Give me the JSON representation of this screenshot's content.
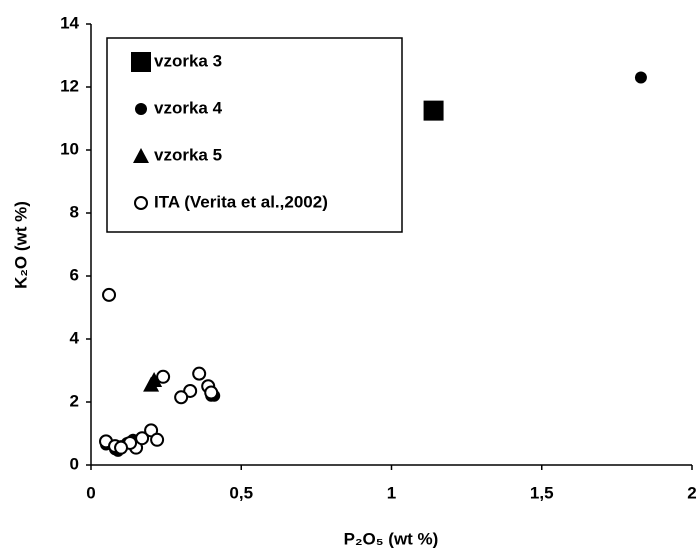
{
  "chart_data": {
    "type": "scatter",
    "x_label": "P₂O₅ (wt %)",
    "y_label": "K₂O (wt %)",
    "xlim": [
      0,
      2
    ],
    "xticks": [
      0,
      {
        "value": 0.5,
        "label": "0,5"
      },
      1,
      {
        "value": 1.5,
        "label": "1,5"
      },
      2
    ],
    "ylim": [
      0,
      14
    ],
    "yticks": [
      0,
      2,
      4,
      6,
      8,
      10,
      12,
      14
    ],
    "series": [
      {
        "name": "vzorka 3",
        "marker": "square",
        "color": "#000000",
        "x": [
          1.14
        ],
        "y": [
          11.25
        ]
      },
      {
        "name": "vzorka 4",
        "marker": "circle",
        "color": "#000000",
        "x": [
          1.83,
          0.4,
          0.41,
          0.08,
          0.1,
          0.12,
          0.14,
          0.05,
          0.09
        ],
        "y": [
          12.3,
          2.2,
          2.2,
          0.5,
          0.6,
          0.7,
          0.8,
          0.65,
          0.45
        ]
      },
      {
        "name": "vzorka 5",
        "marker": "triangle",
        "color": "#000000",
        "x": [
          0.2,
          0.21
        ],
        "y": [
          2.55,
          2.7
        ]
      },
      {
        "name": "ITA (Verita et al.,2002)",
        "marker": "open-circle",
        "color": "#000000",
        "x": [
          0.06,
          0.24,
          0.36,
          0.39,
          0.33,
          0.3,
          0.2,
          0.22,
          0.15,
          0.05,
          0.13,
          0.17,
          0.08,
          0.1,
          0.4
        ],
        "y": [
          5.4,
          2.8,
          2.9,
          2.5,
          2.35,
          2.15,
          1.1,
          0.8,
          0.55,
          0.75,
          0.7,
          0.85,
          0.6,
          0.55,
          2.3
        ]
      }
    ]
  }
}
